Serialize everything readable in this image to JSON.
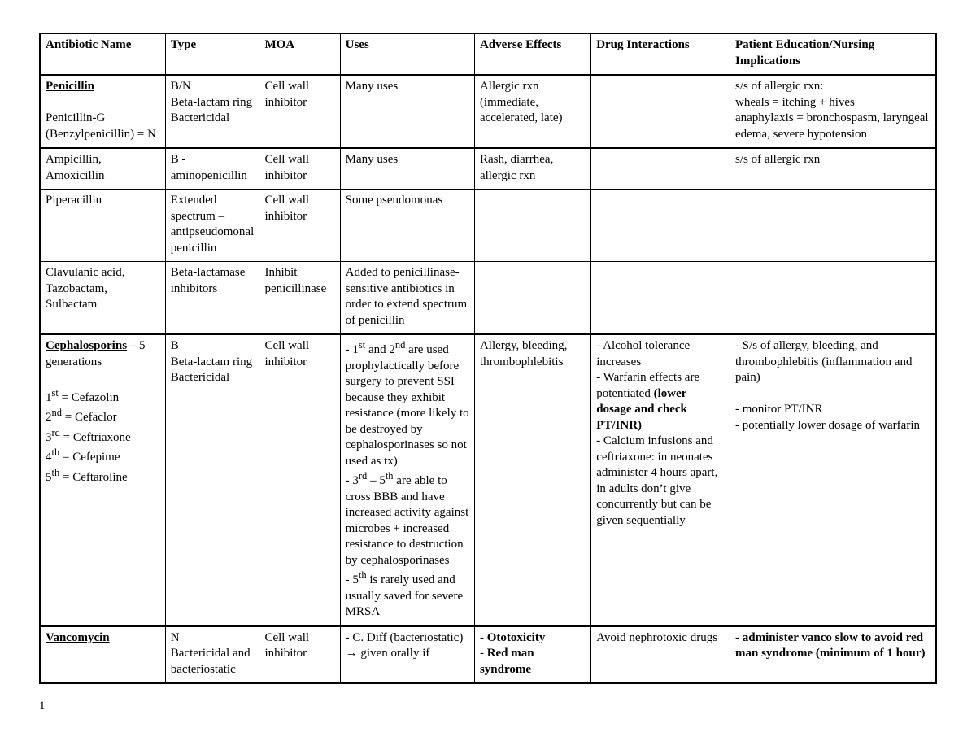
{
  "table": {
    "headers": {
      "name": "Antibiotic Name",
      "type": "Type",
      "moa": "MOA",
      "uses": "Uses",
      "adverse": "Adverse Effects",
      "interactions": "Drug Interactions",
      "education": "Patient Education/Nursing Implications"
    },
    "rows": {
      "penicillin": {
        "name_bold_underline": "Penicillin",
        "name_rest_html": "<br><br>Penicillin-G (Benzylpenicillin) = N",
        "type_html": "B/N<br>Beta-lactam ring<br>Bactericidal",
        "moa": "Cell wall inhibitor",
        "uses": "Many uses",
        "adverse_html": "Allergic rxn (immediate, accelerated, late)",
        "interactions_html": "",
        "education_html": "s/s of allergic rxn:<br>wheals = itching + hives<br>anaphylaxis = bronchospasm, laryngeal edema, severe hypotension"
      },
      "ampicillin": {
        "name_html": "Ampicillin, Amoxicillin",
        "type_html": "B - aminopenicillin",
        "moa": "Cell wall inhibitor",
        "uses": "Many uses",
        "adverse_html": "Rash, diarrhea, allergic rxn",
        "interactions_html": "",
        "education_html": "s/s of allergic rxn"
      },
      "piperacillin": {
        "name_html": "Piperacillin",
        "type_html": "Extended spectrum – antipseudomonal penicillin",
        "moa": "Cell wall inhibitor",
        "uses": "Some pseudomonas",
        "adverse_html": "",
        "interactions_html": "",
        "education_html": ""
      },
      "clavulanic": {
        "name_html": "Clavulanic acid, Tazobactam, Sulbactam",
        "type_html": "Beta-lactamase inhibitors",
        "moa": "Inhibit penicillinase",
        "uses_html": "Added to penicillinase-sensitive antibiotics in order to extend spectrum of penicillin",
        "adverse_html": "",
        "interactions_html": "",
        "education_html": ""
      },
      "cephalosporins": {
        "name_bold_underline": "Cephalosporins",
        "name_after_bold": " – 5 generations",
        "name_rest_html": "<br><br>1<sup>st</sup> = Cefazolin<br>2<sup>nd</sup> = Cefaclor<br>3<sup>rd</sup> = Ceftriaxone<br>4<sup>th</sup> = Cefepime<br>5<sup>th</sup> = Ceftaroline",
        "type_html": "B<br>Beta-lactam ring<br>Bactericidal",
        "moa": "Cell wall inhibitor",
        "uses_html": "- 1<sup>st</sup> and 2<sup>nd</sup> are used prophylactically before surgery to prevent SSI because they exhibit resistance (more likely to be destroyed by cephalosporinases so not used as tx)<br>- 3<sup>rd</sup> – 5<sup>th</sup> are able to cross BBB and have increased activity against microbes + increased resistance to destruction by cephalosporinases<br>- 5<sup>th</sup> is rarely used and usually saved for severe MRSA",
        "adverse_html": "Allergy, bleeding, thrombophlebitis",
        "interactions_html": "- Alcohol tolerance increases<br>- Warfarin effects are potentiated <b>(lower dosage and check PT/INR)</b><br>- Calcium infusions and ceftriaxone: in neonates administer 4 hours apart, in adults don’t give concurrently but can be given sequentially",
        "education_html": "- S/s of allergy, bleeding, and thrombophlebitis (inflammation and pain)<br><br>- monitor PT/INR<br>- potentially lower dosage of warfarin"
      },
      "vancomycin": {
        "name_bold_underline": "Vancomycin",
        "name_rest_html": "",
        "type_html": "N<br>Bactericidal and bacteriostatic",
        "moa": "Cell wall inhibitor",
        "uses_html": "- C. Diff (bacteriostatic) → given orally if",
        "adverse_html": "- <b>Ototoxicity</b><br>- <b>Red man syndrome</b>",
        "interactions_html": "Avoid nephrotoxic drugs",
        "education_html": "- <b>administer vanco slow to avoid red man syndrome (minimum of 1 hour)</b>"
      }
    }
  },
  "page_number": "1",
  "colors": {
    "text": "#000000",
    "background": "#ffffff",
    "border": "#000000"
  },
  "font": {
    "family": "Times New Roman",
    "size_pt": 11
  }
}
